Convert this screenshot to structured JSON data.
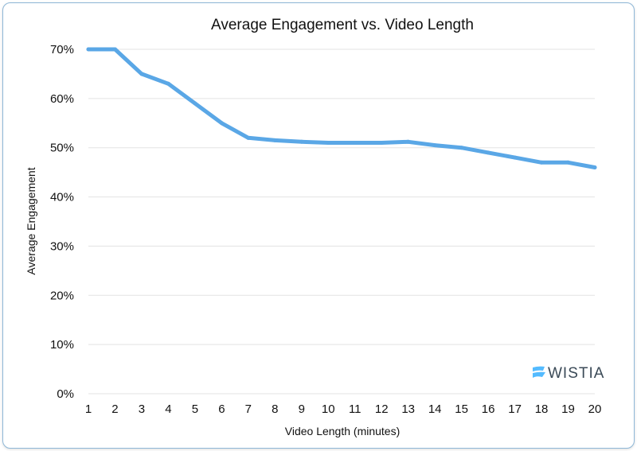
{
  "chart_data": {
    "type": "line",
    "title": "Average Engagement vs. Video Length",
    "xlabel": "Video Length (minutes)",
    "ylabel": "Average Engagement",
    "x": [
      1,
      2,
      3,
      4,
      5,
      6,
      7,
      8,
      9,
      10,
      11,
      12,
      13,
      14,
      15,
      16,
      17,
      18,
      19,
      20
    ],
    "series": [
      {
        "values": [
          70,
          70,
          65,
          63,
          59,
          55,
          52,
          51.5,
          51.2,
          51,
          51,
          51,
          51.2,
          50.5,
          50,
          49,
          48,
          47,
          47,
          46
        ],
        "color": "#5aa7e6"
      }
    ],
    "ylim": [
      0,
      70
    ],
    "y_ticks": [
      "0%",
      "10%",
      "20%",
      "30%",
      "40%",
      "50%",
      "60%",
      "70%"
    ],
    "y_tick_values": [
      0,
      10,
      20,
      30,
      40,
      50,
      60,
      70
    ],
    "grid": true,
    "legend": "none"
  },
  "logo": {
    "text": "WISTIA",
    "icon": "wistia-logo-icon",
    "color": "#54bbff"
  }
}
